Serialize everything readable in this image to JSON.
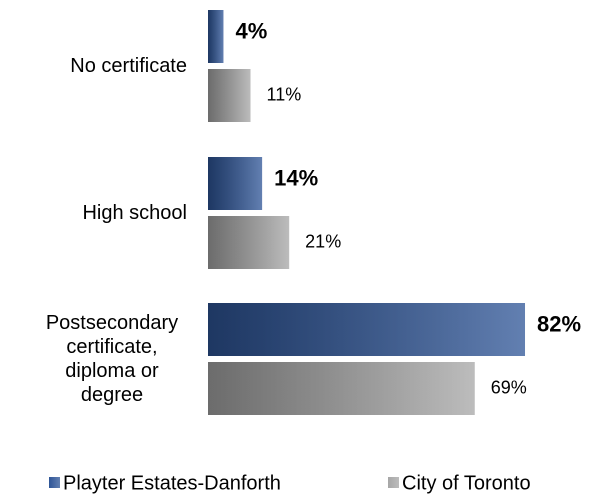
{
  "chart_data": {
    "type": "bar",
    "orientation": "horizontal",
    "categories": [
      "No certificate",
      "High school",
      "Postsecondary certificate, diploma or degree"
    ],
    "series": [
      {
        "name": "Playter Estates-Danforth",
        "color": "#2e5597",
        "values": [
          4,
          14,
          82
        ],
        "value_labels": [
          "4%",
          "14%",
          "82%"
        ]
      },
      {
        "name": "City of Toronto",
        "color": "#a6a6a6",
        "values": [
          11,
          21,
          69
        ],
        "value_labels": [
          "11%",
          "21%",
          "69%"
        ]
      }
    ],
    "xlim": [
      0,
      100
    ],
    "legend": "bottom"
  }
}
